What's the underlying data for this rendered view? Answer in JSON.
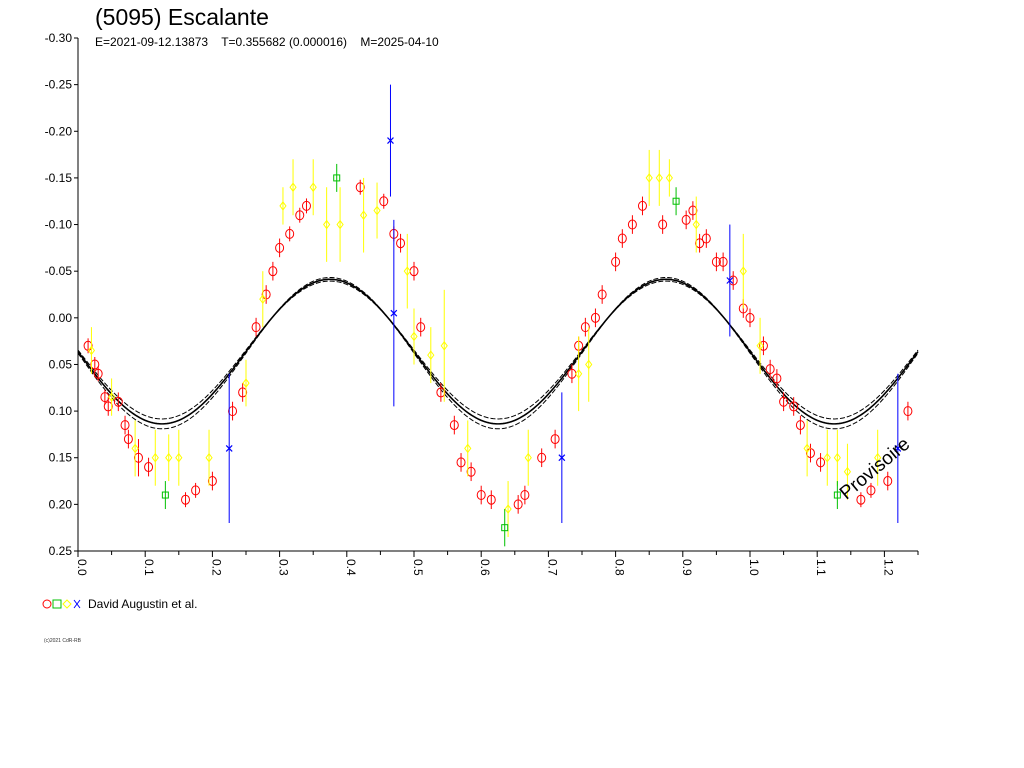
{
  "header": {
    "title": "(5095) Escalante",
    "subtitle": "E=2021-09-12.13873    T=0.355682 (0.000016)    M=2025-04-10"
  },
  "legend": {
    "label": "David Augustin et al."
  },
  "footer": {
    "copyright": "(c)2021 CdR-RB"
  },
  "watermark": "Provisoire",
  "colors": {
    "red": "#ff0000",
    "yellow": "#ffff00",
    "green": "#00c000",
    "blue": "#0000ff",
    "curve": "#000000"
  },
  "chart_data": {
    "type": "scatter",
    "xlim": [
      0.0,
      1.25
    ],
    "ylim": [
      -0.3,
      0.25
    ],
    "y_inverted": true,
    "x_ticks": [
      "0.0",
      "0.1",
      "0.2",
      "0.3",
      "0.4",
      "0.5",
      "0.6",
      "0.7",
      "0.8",
      "0.9",
      "1.0",
      "1.1",
      "1.2"
    ],
    "x_tick_values": [
      0.0,
      0.1,
      0.2,
      0.3,
      0.4,
      0.5,
      0.6,
      0.7,
      0.8,
      0.9,
      1.0,
      1.1,
      1.2
    ],
    "y_ticks": [
      "-0.30",
      "-0.25",
      "-0.20",
      "-0.15",
      "-0.10",
      "-0.05",
      "0.00",
      "0.05",
      "0.10",
      "0.15",
      "0.20",
      "0.25"
    ],
    "y_tick_values": [
      -0.3,
      -0.25,
      -0.2,
      -0.15,
      -0.1,
      -0.05,
      0.0,
      0.05,
      0.1,
      0.15,
      0.2,
      0.25
    ],
    "model": {
      "period_phase": 0.5,
      "amplitude": 0.0775,
      "offset": 0.0362,
      "phase_zero_crossing": 0.0,
      "band": 0.006
    },
    "series": [
      {
        "marker": "circle",
        "color": "#ff0000",
        "points": [
          [
            0.015,
            0.03,
            0.008
          ],
          [
            0.025,
            0.05,
            0.008
          ],
          [
            0.03,
            0.06,
            0.008
          ],
          [
            0.04,
            0.085,
            0.008
          ],
          [
            0.045,
            0.095,
            0.01
          ],
          [
            0.06,
            0.09,
            0.01
          ],
          [
            0.07,
            0.115,
            0.01
          ],
          [
            0.075,
            0.13,
            0.01
          ],
          [
            0.09,
            0.15,
            0.02
          ],
          [
            0.105,
            0.16,
            0.01
          ],
          [
            0.16,
            0.195,
            0.008
          ],
          [
            0.175,
            0.185,
            0.008
          ],
          [
            0.2,
            0.175,
            0.01
          ],
          [
            0.23,
            0.1,
            0.01
          ],
          [
            0.245,
            0.08,
            0.01
          ],
          [
            0.265,
            0.01,
            0.01
          ],
          [
            0.28,
            -0.025,
            0.01
          ],
          [
            0.29,
            -0.05,
            0.01
          ],
          [
            0.3,
            -0.075,
            0.01
          ],
          [
            0.315,
            -0.09,
            0.008
          ],
          [
            0.33,
            -0.11,
            0.008
          ],
          [
            0.34,
            -0.12,
            0.008
          ],
          [
            0.42,
            -0.14,
            0.008
          ],
          [
            0.455,
            -0.125,
            0.008
          ],
          [
            0.47,
            -0.09,
            0.008
          ],
          [
            0.48,
            -0.08,
            0.01
          ],
          [
            0.5,
            -0.05,
            0.01
          ],
          [
            0.51,
            0.01,
            0.01
          ],
          [
            0.54,
            0.08,
            0.01
          ],
          [
            0.56,
            0.115,
            0.01
          ],
          [
            0.57,
            0.155,
            0.01
          ],
          [
            0.585,
            0.165,
            0.01
          ],
          [
            0.6,
            0.19,
            0.01
          ],
          [
            0.615,
            0.195,
            0.01
          ],
          [
            0.655,
            0.2,
            0.01
          ],
          [
            0.665,
            0.19,
            0.01
          ],
          [
            0.69,
            0.15,
            0.01
          ],
          [
            0.71,
            0.13,
            0.01
          ],
          [
            0.735,
            0.06,
            0.01
          ],
          [
            0.745,
            0.03,
            0.01
          ],
          [
            0.755,
            0.01,
            0.01
          ],
          [
            0.77,
            0.0,
            0.01
          ],
          [
            0.78,
            -0.025,
            0.01
          ],
          [
            0.8,
            -0.06,
            0.01
          ],
          [
            0.81,
            -0.085,
            0.01
          ],
          [
            0.825,
            -0.1,
            0.01
          ],
          [
            0.84,
            -0.12,
            0.01
          ],
          [
            0.87,
            -0.1,
            0.01
          ],
          [
            0.905,
            -0.105,
            0.01
          ],
          [
            0.915,
            -0.115,
            0.01
          ],
          [
            0.925,
            -0.08,
            0.01
          ],
          [
            0.935,
            -0.085,
            0.01
          ],
          [
            0.95,
            -0.06,
            0.01
          ],
          [
            0.96,
            -0.06,
            0.01
          ],
          [
            0.975,
            -0.04,
            0.01
          ],
          [
            0.99,
            -0.01,
            0.01
          ],
          [
            1.0,
            0.0,
            0.01
          ],
          [
            1.02,
            0.03,
            0.01
          ],
          [
            1.03,
            0.055,
            0.01
          ],
          [
            1.04,
            0.065,
            0.01
          ],
          [
            1.05,
            0.09,
            0.01
          ],
          [
            1.065,
            0.095,
            0.01
          ],
          [
            1.075,
            0.115,
            0.01
          ],
          [
            1.09,
            0.145,
            0.01
          ],
          [
            1.105,
            0.155,
            0.01
          ],
          [
            1.165,
            0.195,
            0.008
          ],
          [
            1.18,
            0.185,
            0.008
          ],
          [
            1.205,
            0.175,
            0.01
          ],
          [
            1.235,
            0.1,
            0.01
          ]
        ]
      },
      {
        "marker": "diamond",
        "color": "#ffff00",
        "points": [
          [
            0.02,
            0.035,
            0.025
          ],
          [
            0.05,
            0.085,
            0.02
          ],
          [
            0.085,
            0.14,
            0.03
          ],
          [
            0.115,
            0.15,
            0.03
          ],
          [
            0.135,
            0.15,
            0.025
          ],
          [
            0.15,
            0.15,
            0.03
          ],
          [
            0.195,
            0.15,
            0.03
          ],
          [
            0.25,
            0.07,
            0.025
          ],
          [
            0.275,
            -0.02,
            0.03
          ],
          [
            0.305,
            -0.12,
            0.02
          ],
          [
            0.32,
            -0.14,
            0.03
          ],
          [
            0.35,
            -0.14,
            0.03
          ],
          [
            0.37,
            -0.1,
            0.04
          ],
          [
            0.39,
            -0.1,
            0.04
          ],
          [
            0.425,
            -0.11,
            0.04
          ],
          [
            0.445,
            -0.115,
            0.03
          ],
          [
            0.49,
            -0.05,
            0.04
          ],
          [
            0.5,
            0.02,
            0.03
          ],
          [
            0.525,
            0.04,
            0.03
          ],
          [
            0.545,
            0.03,
            0.06
          ],
          [
            0.58,
            0.14,
            0.03
          ],
          [
            0.64,
            0.205,
            0.03
          ],
          [
            0.67,
            0.15,
            0.03
          ],
          [
            0.745,
            0.06,
            0.04
          ],
          [
            0.76,
            0.05,
            0.04
          ],
          [
            0.85,
            -0.15,
            0.03
          ],
          [
            0.865,
            -0.15,
            0.03
          ],
          [
            0.88,
            -0.15,
            0.02
          ],
          [
            0.92,
            -0.1,
            0.03
          ],
          [
            0.99,
            -0.05,
            0.04
          ],
          [
            1.015,
            0.03,
            0.03
          ],
          [
            1.085,
            0.14,
            0.03
          ],
          [
            1.115,
            0.15,
            0.03
          ],
          [
            1.13,
            0.15,
            0.03
          ],
          [
            1.145,
            0.165,
            0.03
          ],
          [
            1.19,
            0.15,
            0.03
          ]
        ]
      },
      {
        "marker": "square",
        "color": "#00c000",
        "points": [
          [
            0.13,
            0.19,
            0.015
          ],
          [
            0.385,
            -0.15,
            0.015
          ],
          [
            0.635,
            0.225,
            0.02
          ],
          [
            0.89,
            -0.125,
            0.015
          ],
          [
            1.13,
            0.19,
            0.015
          ]
        ]
      },
      {
        "marker": "cross",
        "color": "#0000ff",
        "points": [
          [
            0.225,
            0.14,
            0.08
          ],
          [
            0.465,
            -0.19,
            0.06
          ],
          [
            0.47,
            -0.005,
            0.1
          ],
          [
            0.72,
            0.15,
            0.07
          ],
          [
            0.97,
            -0.04,
            0.06
          ],
          [
            1.22,
            0.14,
            0.08
          ]
        ]
      }
    ]
  }
}
